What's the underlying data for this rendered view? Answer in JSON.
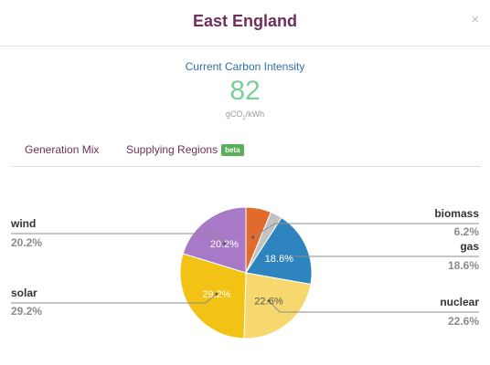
{
  "modal": {
    "title": "East England",
    "close_label": "×"
  },
  "carbon": {
    "label": "Current Carbon Intensity",
    "value": "82",
    "unit_main": "gCO",
    "unit_sub": "2",
    "unit_tail": "/kWh"
  },
  "tabs": [
    {
      "label": "Generation Mix"
    },
    {
      "label": "Supplying Regions",
      "badge": "beta"
    }
  ],
  "chart_data": {
    "type": "pie",
    "slices": [
      {
        "name": "biomass",
        "value": 6.2,
        "label": "6.2%",
        "color": "#e06b2c"
      },
      {
        "name": "other",
        "value": 2.9,
        "label": "",
        "color": "#c2c2c2"
      },
      {
        "name": "gas",
        "value": 18.6,
        "label": "18.6%",
        "color": "#2e84bf"
      },
      {
        "name": "nuclear",
        "value": 22.6,
        "label": "22.6%",
        "color": "#f7d86e"
      },
      {
        "name": "solar",
        "value": 29.2,
        "label": "29.2%",
        "color": "#f2c314"
      },
      {
        "name": "wind",
        "value": 20.2,
        "label": "20.2%",
        "color": "#a879c6"
      }
    ]
  }
}
